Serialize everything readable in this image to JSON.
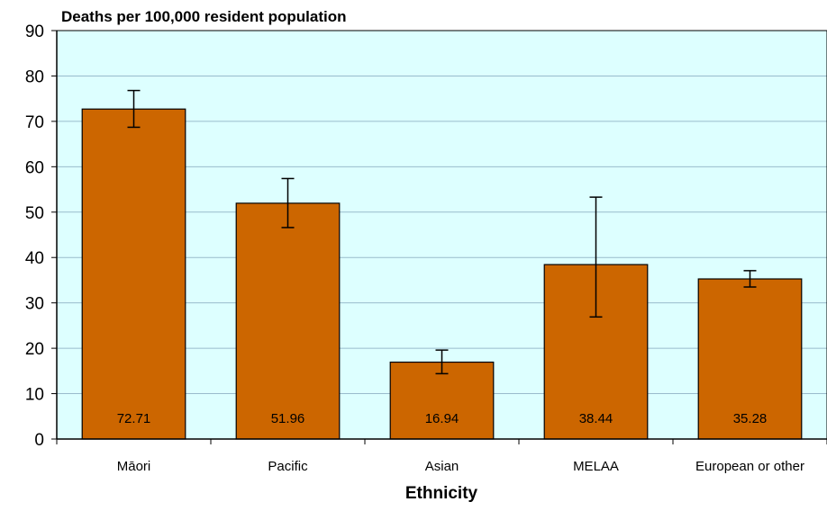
{
  "chart_data": {
    "type": "bar",
    "title": "Deaths per 100,000 resident population",
    "xlabel": "Ethnicity",
    "ylabel": "",
    "ylim": [
      0,
      90
    ],
    "yticks": [
      0,
      10,
      20,
      30,
      40,
      50,
      60,
      70,
      80,
      90
    ],
    "categories": [
      "Māori",
      "Pacific",
      "Asian",
      "MELAA",
      "European or other"
    ],
    "values": [
      72.71,
      51.96,
      16.94,
      38.44,
      35.28
    ],
    "value_labels": [
      "72.71",
      "51.96",
      "16.94",
      "38.44",
      "35.28"
    ],
    "error_low": [
      68.7,
      46.6,
      14.4,
      26.9,
      33.5
    ],
    "error_high": [
      76.8,
      57.4,
      19.6,
      53.3,
      37.1
    ],
    "grid": true,
    "legend": "none",
    "colors": {
      "bar": "#CC6600",
      "plot_background": "#DDFFFF",
      "gridline": "#99BBCC",
      "axis": "#000000"
    }
  }
}
